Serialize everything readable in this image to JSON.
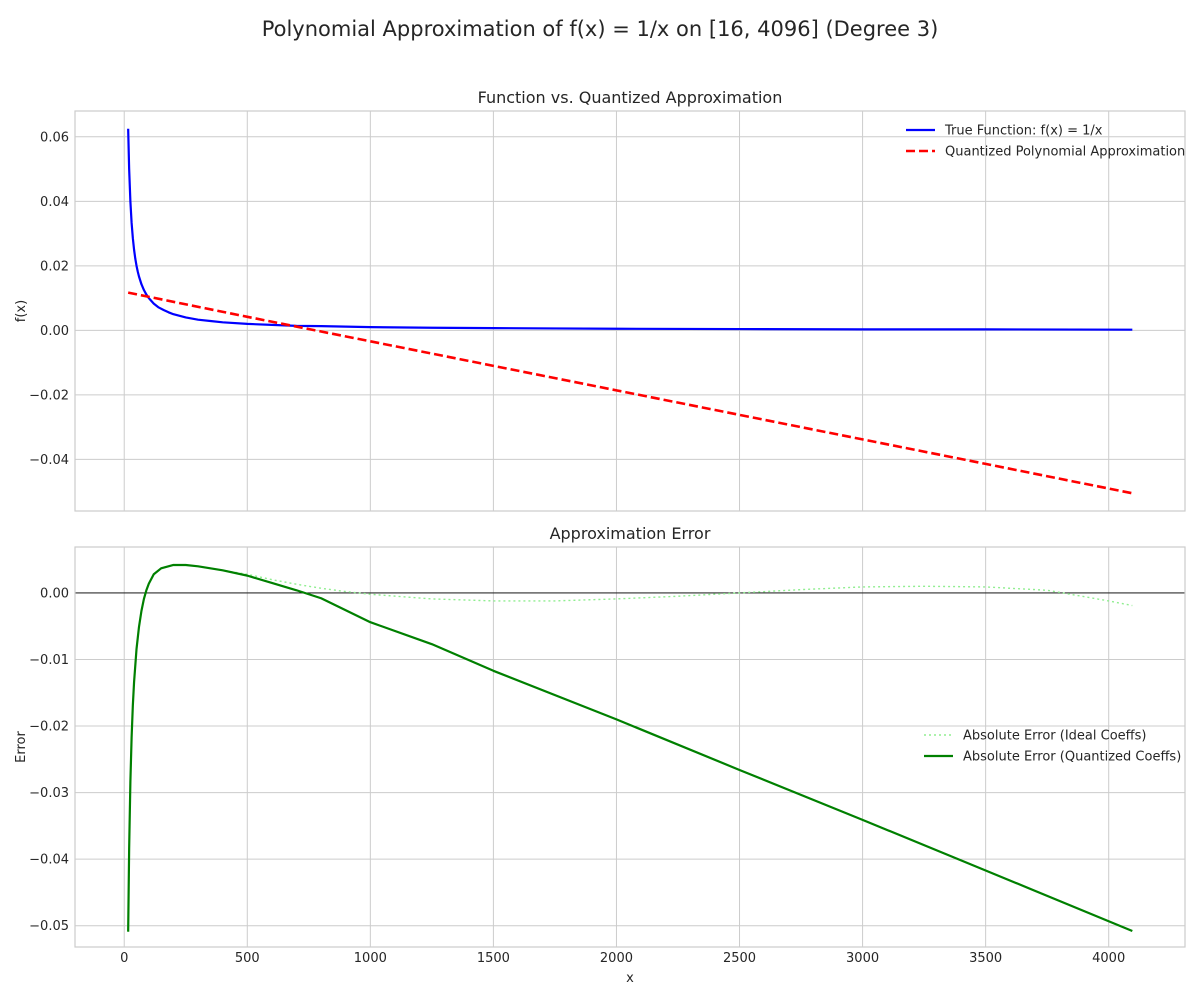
{
  "figure": {
    "suptitle": "Polynomial Approximation of f(x) = 1/x on [16, 4096] (Degree 3)"
  },
  "chart_data": [
    {
      "type": "line",
      "title": "Function vs. Quantized Approximation",
      "xlabel": "",
      "ylabel": "f(x)",
      "xlim": [
        -200,
        4310
      ],
      "ylim": [
        -0.056,
        0.068
      ],
      "xticks": [
        0,
        500,
        1000,
        1500,
        2000,
        2500,
        3000,
        3500,
        4000
      ],
      "xtick_labels": [],
      "yticks": [
        0.06,
        0.04,
        0.02,
        0.0,
        -0.02,
        -0.04
      ],
      "ytick_labels": [
        "0.06",
        "0.04",
        "0.02",
        "0.00",
        "−0.02",
        "−0.04"
      ],
      "grid": true,
      "legend_position": "top-right",
      "series": [
        {
          "name": "True Function: f(x) = 1/x",
          "color": "#0000ff",
          "style": "solid",
          "x": [
            16,
            20,
            25,
            30,
            35,
            40,
            45,
            50,
            55,
            60,
            70,
            80,
            90,
            100,
            120,
            140,
            160,
            180,
            200,
            250,
            300,
            350,
            400,
            500,
            600,
            700,
            800,
            1000,
            1250,
            1500,
            1750,
            2000,
            2500,
            3000,
            3500,
            4096
          ],
          "y": [
            0.0625,
            0.05,
            0.04,
            0.0333,
            0.0286,
            0.025,
            0.0222,
            0.02,
            0.0182,
            0.0167,
            0.0143,
            0.0125,
            0.0111,
            0.01,
            0.0083,
            0.0071,
            0.0063,
            0.0056,
            0.005,
            0.004,
            0.0033,
            0.0029,
            0.0025,
            0.002,
            0.0017,
            0.0014,
            0.0013,
            0.001,
            0.0008,
            0.0007,
            0.0006,
            0.0005,
            0.0004,
            0.0003,
            0.0003,
            0.0002
          ]
        },
        {
          "name": "Quantized Polynomial Approximation",
          "color": "#ff0000",
          "style": "dashed",
          "x": [
            16,
            500,
            1000,
            1500,
            2000,
            2500,
            3000,
            3500,
            4096
          ],
          "y": [
            0.0117,
            0.0042,
            -0.0034,
            -0.011,
            -0.0186,
            -0.0262,
            -0.0338,
            -0.0414,
            -0.0505
          ]
        }
      ]
    },
    {
      "type": "line",
      "title": "Approximation Error",
      "xlabel": "x",
      "ylabel": "Error",
      "xlim": [
        -200,
        4310
      ],
      "ylim": [
        -0.0532,
        0.0069
      ],
      "xticks": [
        0,
        500,
        1000,
        1500,
        2000,
        2500,
        3000,
        3500,
        4000
      ],
      "xtick_labels": [
        "0",
        "500",
        "1000",
        "1500",
        "2000",
        "2500",
        "3000",
        "3500",
        "4000"
      ],
      "yticks": [
        0.0,
        -0.01,
        -0.02,
        -0.03,
        -0.04,
        -0.05
      ],
      "ytick_labels": [
        "0.00",
        "−0.01",
        "−0.02",
        "−0.03",
        "−0.04",
        "−0.05"
      ],
      "grid": true,
      "legend_position": "center-right",
      "series": [
        {
          "name": "Absolute Error (Ideal Coeffs)",
          "color": "#90ee90",
          "style": "dotted",
          "x": [
            16,
            20,
            25,
            30,
            35,
            40,
            50,
            60,
            70,
            80,
            90,
            100,
            120,
            150,
            200,
            250,
            300,
            400,
            500,
            600,
            700,
            800,
            900,
            1000,
            1250,
            1500,
            1750,
            2000,
            2250,
            2500,
            2750,
            3000,
            3250,
            3500,
            3750,
            4000,
            4096
          ],
          "y": [
            -0.0509,
            -0.0384,
            -0.0284,
            -0.0217,
            -0.0169,
            -0.0134,
            -0.0084,
            -0.0051,
            -0.0027,
            -0.0009,
            0.0004,
            0.0014,
            0.0028,
            0.0037,
            0.0042,
            0.0042,
            0.004,
            0.0034,
            0.0028,
            0.002,
            0.0013,
            0.0007,
            0.0002,
            -0.0002,
            -0.0009,
            -0.0012,
            -0.0012,
            -0.0009,
            -0.0005,
            0.0,
            0.0005,
            0.0009,
            0.001,
            0.0009,
            0.0004,
            -0.0012,
            -0.0019
          ]
        },
        {
          "name": "Absolute Error (Quantized Coeffs)",
          "color": "#008000",
          "style": "solid",
          "x": [
            16,
            20,
            25,
            30,
            35,
            40,
            50,
            60,
            70,
            80,
            90,
            100,
            120,
            150,
            200,
            250,
            300,
            400,
            500,
            600,
            700,
            800,
            1000,
            1250,
            1500,
            2000,
            2500,
            3000,
            3500,
            4096
          ],
          "y": [
            -0.0509,
            -0.0384,
            -0.0284,
            -0.0217,
            -0.0169,
            -0.0134,
            -0.0084,
            -0.0051,
            -0.0027,
            -0.0009,
            0.0004,
            0.0014,
            0.0028,
            0.0037,
            0.0042,
            0.0042,
            0.004,
            0.0034,
            0.0026,
            0.0015,
            0.0004,
            -0.0008,
            -0.0044,
            -0.0077,
            -0.0117,
            -0.019,
            -0.0266,
            -0.0341,
            -0.0417,
            -0.0508
          ]
        }
      ]
    }
  ]
}
